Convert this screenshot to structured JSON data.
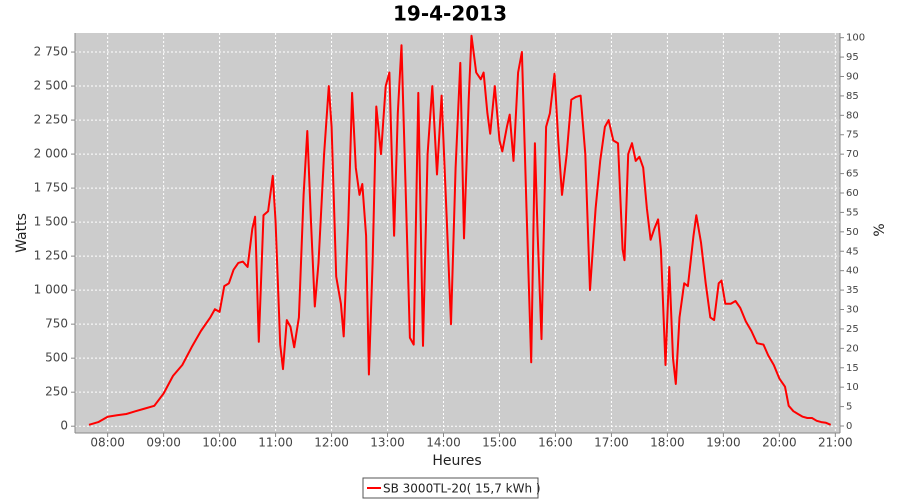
{
  "chart_data": {
    "type": "line",
    "title": "19-4-2013",
    "x_label": "Heures",
    "y_label": "Watts",
    "y2_label": "%",
    "x": [
      460,
      470,
      480,
      490,
      500,
      510,
      520,
      530,
      540,
      550,
      560,
      570,
      580,
      590,
      595,
      600,
      605,
      610,
      615,
      620,
      625,
      630,
      635,
      638,
      642,
      647,
      652,
      657,
      660,
      665,
      668,
      672,
      676,
      680,
      685,
      690,
      694,
      698,
      702,
      706,
      712,
      717,
      720,
      725,
      730,
      733,
      738,
      742,
      746,
      750,
      753,
      757,
      760,
      764,
      768,
      773,
      778,
      782,
      787,
      791,
      795,
      800,
      804,
      808,
      813,
      818,
      823,
      828,
      833,
      838,
      843,
      848,
      853,
      858,
      862,
      867,
      870,
      875,
      880,
      883,
      887,
      890,
      895,
      900,
      903,
      908,
      911,
      915,
      920,
      924,
      929,
      934,
      938,
      941,
      945,
      950,
      954,
      959,
      963,
      967,
      972,
      977,
      982,
      987,
      992,
      997,
      1003,
      1008,
      1013,
      1017,
      1022,
      1027,
      1032,
      1034,
      1038,
      1042,
      1046,
      1050,
      1054,
      1058,
      1062,
      1066,
      1070,
      1073,
      1078,
      1082,
      1086,
      1089,
      1093,
      1098,
      1102,
      1108,
      1111,
      1116,
      1121,
      1126,
      1130,
      1135,
      1138,
      1142,
      1148,
      1153,
      1158,
      1164,
      1170,
      1176,
      1183,
      1188,
      1194,
      1200,
      1206,
      1210,
      1215,
      1220,
      1225,
      1230,
      1235,
      1240,
      1245,
      1250,
      1255
    ],
    "series": [
      {
        "name": "SB 3000TL-20( 15,7 kWh )",
        "color": "#ff0000",
        "values": [
          10,
          30,
          70,
          80,
          90,
          110,
          130,
          150,
          240,
          370,
          450,
          580,
          700,
          800,
          860,
          840,
          1030,
          1050,
          1150,
          1200,
          1210,
          1170,
          1450,
          1540,
          620,
          1550,
          1580,
          1840,
          1500,
          600,
          420,
          780,
          730,
          580,
          800,
          1700,
          2170,
          1500,
          880,
          1200,
          2000,
          2500,
          2200,
          1100,
          900,
          660,
          1500,
          2450,
          1900,
          1700,
          1780,
          1400,
          380,
          1200,
          2350,
          2000,
          2500,
          2600,
          1400,
          2300,
          2800,
          1600,
          650,
          600,
          2450,
          590,
          2000,
          2500,
          1850,
          2430,
          1600,
          750,
          1900,
          2670,
          1380,
          2400,
          2870,
          2600,
          2550,
          2600,
          2300,
          2150,
          2500,
          2100,
          2020,
          2200,
          2290,
          1950,
          2600,
          2750,
          1600,
          470,
          2080,
          1400,
          640,
          2200,
          2300,
          2590,
          2100,
          1700,
          2000,
          2400,
          2420,
          2430,
          2000,
          1000,
          1600,
          1950,
          2200,
          2250,
          2100,
          2080,
          1300,
          1220,
          2000,
          2080,
          1950,
          1980,
          1900,
          1600,
          1370,
          1450,
          1520,
          1300,
          450,
          1170,
          500,
          310,
          800,
          1050,
          1030,
          1400,
          1550,
          1350,
          1050,
          800,
          780,
          1050,
          1070,
          900,
          900,
          920,
          870,
          770,
          700,
          610,
          600,
          520,
          450,
          350,
          290,
          150,
          110,
          90,
          70,
          60,
          60,
          40,
          30,
          25,
          10
        ]
      }
    ],
    "xlim": [
      445,
      1265
    ],
    "xticks": [
      {
        "value": 480,
        "label": "08:00"
      },
      {
        "value": 540,
        "label": "09:00"
      },
      {
        "value": 600,
        "label": "10:00"
      },
      {
        "value": 660,
        "label": "11:00"
      },
      {
        "value": 720,
        "label": "12:00"
      },
      {
        "value": 780,
        "label": "13:00"
      },
      {
        "value": 840,
        "label": "14:00"
      },
      {
        "value": 900,
        "label": "15:00"
      },
      {
        "value": 960,
        "label": "16:00"
      },
      {
        "value": 1020,
        "label": "17:00"
      },
      {
        "value": 1080,
        "label": "18:00"
      },
      {
        "value": 1140,
        "label": "19:00"
      },
      {
        "value": 1200,
        "label": "20:00"
      },
      {
        "value": 1260,
        "label": "21:00"
      }
    ],
    "ylim": [
      -50,
      2890
    ],
    "yticks": [
      0,
      250,
      500,
      750,
      {
        "value": 1000,
        "label": "1 000"
      },
      {
        "value": 1250,
        "label": "1 250"
      },
      {
        "value": 1500,
        "label": "1 500"
      },
      {
        "value": 1750,
        "label": "1 750"
      },
      {
        "value": 2000,
        "label": "2 000"
      },
      {
        "value": 2250,
        "label": "2 250"
      },
      {
        "value": 2500,
        "label": "2 500"
      },
      {
        "value": 2750,
        "label": "2 750"
      }
    ],
    "y2lim": [
      -1.8,
      101.2
    ],
    "y2ticks": [
      0,
      5,
      10,
      15,
      20,
      25,
      30,
      35,
      40,
      45,
      50,
      55,
      60,
      65,
      70,
      75,
      80,
      85,
      90,
      95,
      100
    ],
    "grid": true
  }
}
